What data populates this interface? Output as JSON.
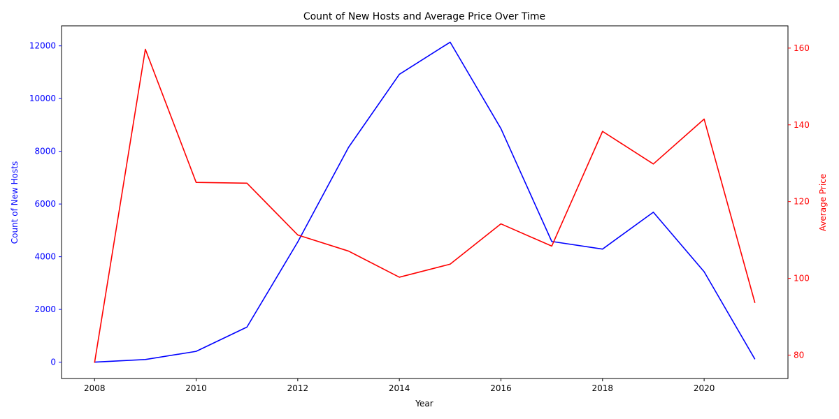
{
  "chart_data": {
    "type": "line",
    "title": "Count of New Hosts and Average Price Over Time",
    "xlabel": "Year",
    "ylabel_left": "Count of New Hosts",
    "ylabel_right": "Average Price",
    "x": [
      2008,
      2009,
      2010,
      2011,
      2012,
      2013,
      2014,
      2015,
      2016,
      2017,
      2018,
      2019,
      2020,
      2021
    ],
    "x_ticks": [
      2008,
      2010,
      2012,
      2014,
      2016,
      2018,
      2020
    ],
    "x_tick_labels": [
      "2008",
      "2010",
      "2012",
      "2014",
      "2016",
      "2018",
      "2020"
    ],
    "xlim": [
      2007.35,
      2021.65
    ],
    "left_axis": {
      "ylim": [
        -620,
        12760
      ],
      "ticks": [
        0,
        2000,
        4000,
        6000,
        8000,
        10000,
        12000
      ],
      "tick_labels": [
        "0",
        "2000",
        "4000",
        "6000",
        "8000",
        "10000",
        "12000"
      ],
      "color": "#0000ff"
    },
    "right_axis": {
      "ylim": [
        73.9,
        165.8
      ],
      "ticks": [
        80,
        100,
        120,
        140,
        160
      ],
      "tick_labels": [
        "80",
        "100",
        "120",
        "140",
        "160"
      ],
      "color": "#ff0000"
    },
    "series": [
      {
        "axis": "left",
        "color": "#0000ff",
        "values": [
          0,
          100,
          410,
          1330,
          4560,
          8150,
          10920,
          12140,
          8860,
          4580,
          4290,
          5690,
          3430,
          110
        ]
      },
      {
        "axis": "right",
        "color": "#ff0000",
        "values": [
          78,
          159.7,
          125,
          124.8,
          111.3,
          107.1,
          100.3,
          103.7,
          114.2,
          108.4,
          138.3,
          129.8,
          141.5,
          93.6
        ]
      }
    ],
    "grid": false,
    "legend": "none"
  }
}
